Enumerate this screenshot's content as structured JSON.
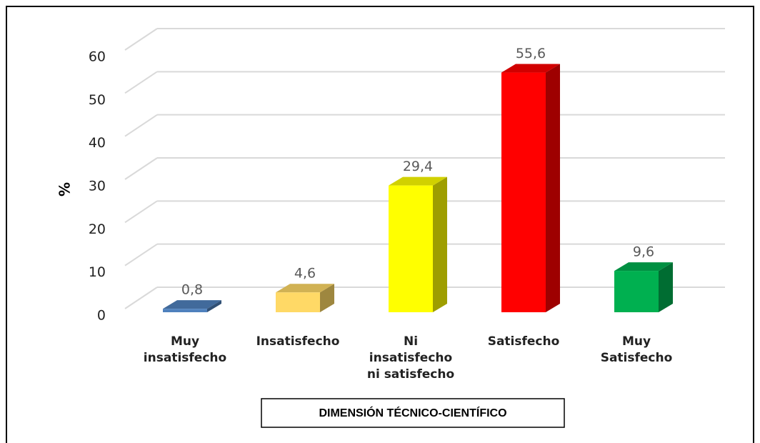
{
  "chart_data": {
    "type": "bar3d",
    "categories": [
      "Muy insatisfecho",
      "Insatisfecho",
      "Ni insatisfecho ni satisfecho",
      "Satisfecho",
      "Muy Satisfecho"
    ],
    "values": [
      0.8,
      4.6,
      29.4,
      55.6,
      9.6
    ],
    "value_labels": [
      "0,8",
      "4,6",
      "29,4",
      "55,6",
      "9,6"
    ],
    "colors": [
      "#4f81bd",
      "#ffd966",
      "#ffff00",
      "#ff0000",
      "#00b050"
    ],
    "ylabel": "%",
    "xlabel": "DIMENSIÓN TÉCNICO-CIENTÍFICO",
    "ylim": [
      0,
      60
    ],
    "yticks": [
      0,
      10,
      20,
      30,
      40,
      50,
      60
    ],
    "grid": true
  }
}
